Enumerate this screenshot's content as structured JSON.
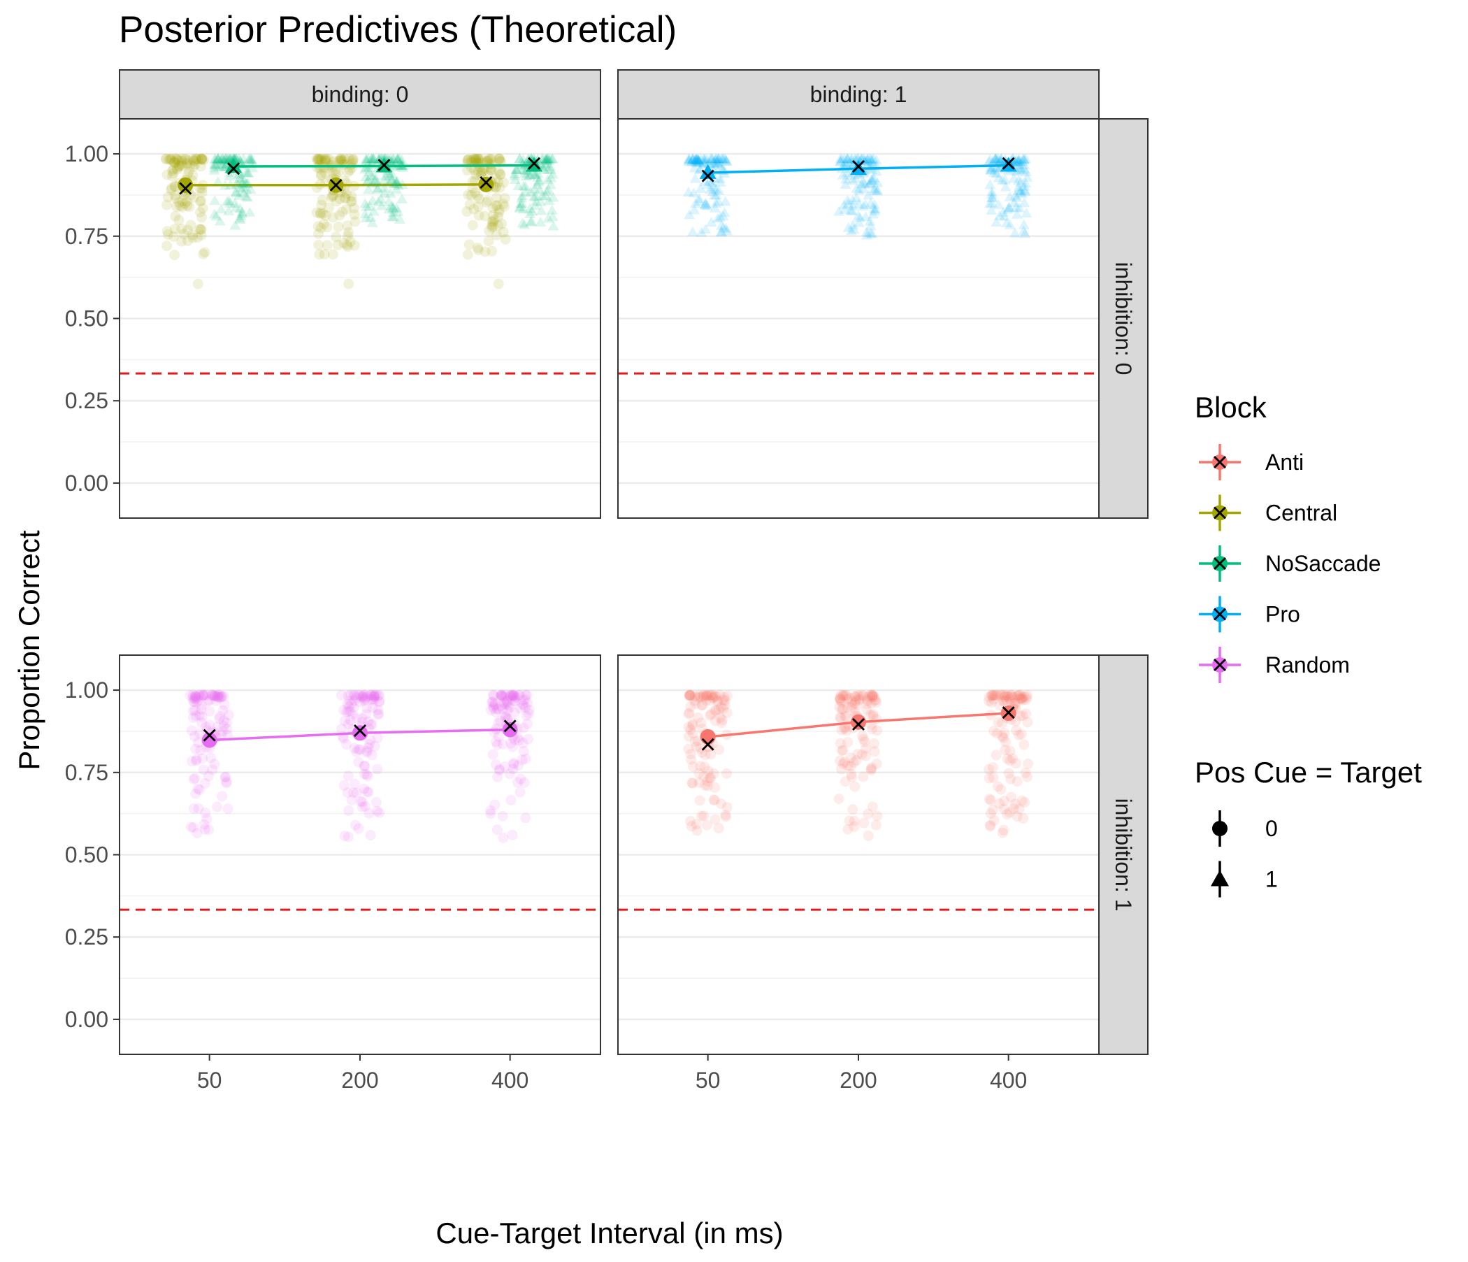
{
  "chart_data": {
    "type": "scatter",
    "title": "Posterior Predictives (Theoretical)",
    "xlabel": "Cue-Target Interval (in ms)",
    "ylabel": "Proportion Correct",
    "x_categories": [
      "50",
      "200",
      "400"
    ],
    "y_ticks": [
      "0.00",
      "0.25",
      "0.50",
      "0.75",
      "1.00"
    ],
    "ylim": [
      0,
      1
    ],
    "reference_line": {
      "y": 0.333,
      "style": "dashed",
      "color": "#e31a1c"
    },
    "grid": true,
    "facets": {
      "columns": [
        "binding: 0",
        "binding: 1"
      ],
      "rows": [
        "inhibition: 0",
        "inhibition: 1"
      ]
    },
    "colors": {
      "Anti": "#F8766D",
      "Central": "#A3A500",
      "NoSaccade": "#00BF7D",
      "Pro": "#00B0F6",
      "Random": "#E76BF3"
    },
    "legend": {
      "placement": "right",
      "block_title": "Block",
      "blocks": [
        "Anti",
        "Central",
        "NoSaccade",
        "Pro",
        "Random"
      ],
      "shape_title": "Pos Cue = Target",
      "shapes": [
        "0",
        "1"
      ]
    },
    "panels": [
      {
        "row": 0,
        "col": 0,
        "series": [
          {
            "block": "Central",
            "shape": "0",
            "x_offset": -0.25,
            "mean": [
              0.905,
              0.905,
              0.907
            ],
            "observed": [
              0.895,
              0.905,
              0.913
            ],
            "spread_lo": 0.69,
            "outliers": [
              0.605,
              0.605,
              0.605
            ]
          },
          {
            "block": "NoSaccade",
            "shape": "1",
            "x_offset": 0.25,
            "mean": [
              0.962,
              0.963,
              0.965
            ],
            "observed": [
              0.955,
              0.966,
              0.971
            ],
            "spread_lo": 0.78,
            "outliers": []
          }
        ]
      },
      {
        "row": 0,
        "col": 1,
        "series": [
          {
            "block": "Pro",
            "shape": "1",
            "x_offset": 0,
            "mean": [
              0.943,
              0.955,
              0.965
            ],
            "observed": [
              0.933,
              0.962,
              0.971
            ],
            "spread_lo": 0.75,
            "outliers": []
          }
        ]
      },
      {
        "row": 1,
        "col": 0,
        "series": [
          {
            "block": "Random",
            "shape": "0",
            "x_offset": 0,
            "mean": [
              0.848,
              0.87,
              0.88
            ],
            "observed": [
              0.863,
              0.877,
              0.891
            ],
            "spread_lo": 0.55,
            "outliers": []
          }
        ]
      },
      {
        "row": 1,
        "col": 1,
        "series": [
          {
            "block": "Anti",
            "shape": "0",
            "x_offset": 0,
            "mean": [
              0.858,
              0.903,
              0.93
            ],
            "observed": [
              0.835,
              0.896,
              0.932
            ],
            "spread_lo": 0.55,
            "outliers": []
          }
        ]
      }
    ]
  }
}
